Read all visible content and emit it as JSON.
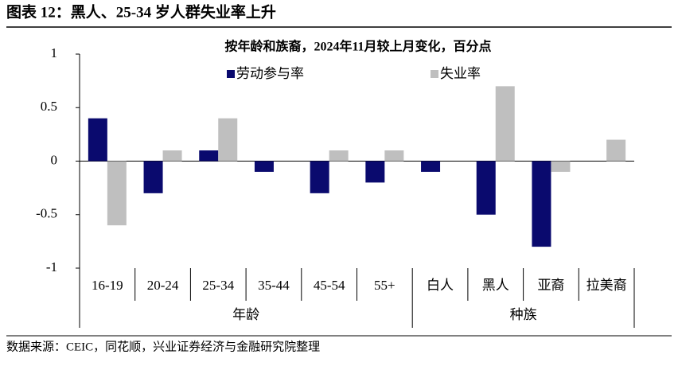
{
  "title": "图表 12：黑人、25-34 岁人群失业率上升",
  "source": "数据来源：CEIC，同花顺，兴业证券经济与金融研究院整理",
  "chart_data": {
    "type": "bar",
    "title": "按年龄和族裔，2024年11月较上月变化，百分点",
    "categories": [
      "16-19",
      "20-24",
      "25-34",
      "35-44",
      "45-54",
      "55+",
      "白人",
      "黑人",
      "亚裔",
      "拉美裔"
    ],
    "group_labels": [
      "年龄",
      "种族"
    ],
    "series": [
      {
        "name": "劳动参与率",
        "color": "#0a0a6e",
        "values": [
          0.4,
          -0.3,
          0.1,
          -0.1,
          -0.3,
          -0.2,
          -0.1,
          -0.5,
          -0.8,
          0
        ]
      },
      {
        "name": "失业率",
        "color": "#bfbfbf",
        "values": [
          -0.6,
          0.1,
          0.4,
          0,
          0.1,
          0.1,
          0,
          0.7,
          -0.1,
          0.2
        ]
      }
    ],
    "ylim": [
      -1,
      1
    ],
    "yticks": [
      1,
      0.5,
      0,
      -0.5,
      -1
    ],
    "grid": false
  }
}
